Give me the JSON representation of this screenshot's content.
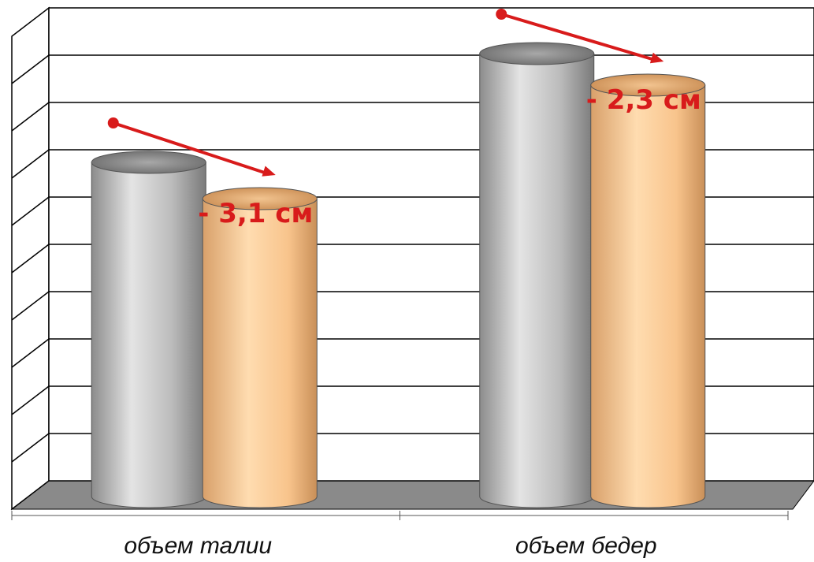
{
  "chart_data": {
    "type": "bar",
    "style": "3d-cylinder",
    "categories": [
      "объем талии",
      "объем бедер"
    ],
    "series": [
      {
        "values": [
          7,
          9.3
        ]
      },
      {
        "values": [
          6.7,
          9.1
        ]
      }
    ],
    "ylim": [
      0,
      10
    ],
    "y_gridlines": 10,
    "grid": true,
    "legend": "none",
    "annotations": [
      {
        "category_index": 0,
        "text": "- 3,1 см"
      },
      {
        "category_index": 1,
        "text": "- 2,3 см"
      }
    ],
    "colors": {
      "series_1": "#bdbdbd",
      "series_2": "#fcc98f",
      "annotation": "#d81b1b",
      "grid": "#000000",
      "floor": "#8a8a8a"
    }
  }
}
